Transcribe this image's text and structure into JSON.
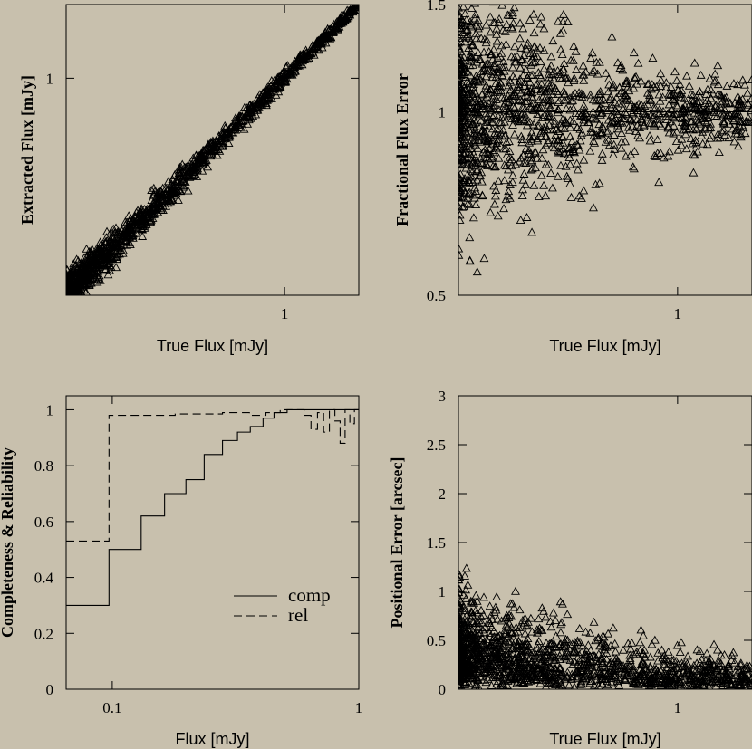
{
  "background": "#c8c0ad",
  "ink": "#000000",
  "chart_data": [
    {
      "type": "scatter",
      "id": "panel-a",
      "xlabel": "True Flux [mJy]",
      "ylabel": "Extracted Flux [mJy]",
      "xscale": "log",
      "yscale": "log",
      "xlim": [
        0.06,
        2.6
      ],
      "ylim": [
        0.06,
        2.6
      ],
      "xticks": [
        {
          "v": 1,
          "label": "1"
        }
      ],
      "yticks": [
        {
          "v": 1,
          "label": "1"
        }
      ],
      "reference_line": {
        "x": [
          0.06,
          2.6
        ],
        "y": [
          0.06,
          2.6
        ]
      },
      "marker": "triangle-open",
      "points_shape": "points scatter tightly about y = x, widest scatter at the faint end"
    },
    {
      "type": "scatter",
      "id": "panel-b",
      "xlabel": "True Flux [mJy]",
      "ylabel": "Fractional Flux Error",
      "xscale": "log",
      "yscale": "log",
      "xlim": [
        0.06,
        2.6
      ],
      "ylim": [
        0.5,
        1.5
      ],
      "xticks": [
        {
          "v": 1,
          "label": "1"
        }
      ],
      "yticks": [
        {
          "v": 0.5,
          "label": "0.5"
        },
        {
          "v": 1,
          "label": "1"
        },
        {
          "v": 1.5,
          "label": "1.5"
        }
      ],
      "reference_line": {
        "x": [
          0.06,
          2.6
        ],
        "y": [
          1,
          1
        ]
      },
      "marker": "triangle-open",
      "points_shape": "ratio centred on 1, spread narrowing toward high flux"
    },
    {
      "type": "line",
      "id": "panel-c",
      "xlabel": "Flux [mJy]",
      "ylabel": "Completeness & Reliability",
      "xscale": "log",
      "xlim": [
        0.065,
        1.0
      ],
      "ylim": [
        0,
        1.05
      ],
      "xticks": [
        {
          "v": 0.1,
          "label": "0.1"
        },
        {
          "v": 1,
          "label": "1"
        }
      ],
      "yticks": [
        {
          "v": 0,
          "label": "0"
        },
        {
          "v": 0.2,
          "label": "0.2"
        },
        {
          "v": 0.4,
          "label": "0.4"
        },
        {
          "v": 0.6,
          "label": "0.6"
        },
        {
          "v": 0.8,
          "label": "0.8"
        },
        {
          "v": 1,
          "label": "1"
        }
      ],
      "legend": "bottom-right",
      "series": [
        {
          "name": "comp",
          "dash": "solid",
          "edges": [
            0.065,
            0.097,
            0.131,
            0.163,
            0.199,
            0.236,
            0.28,
            0.322,
            0.363,
            0.409,
            0.453,
            0.512,
            0.58,
            0.66,
            0.76,
            0.86,
            1.0
          ],
          "values": [
            0.3,
            0.5,
            0.62,
            0.7,
            0.75,
            0.84,
            0.89,
            0.92,
            0.94,
            0.97,
            0.99,
            1.0,
            1.0,
            1.0,
            1.0,
            1.0
          ]
        },
        {
          "name": "rel",
          "dash": "dashed",
          "edges": [
            0.065,
            0.097,
            0.18,
            0.28,
            0.36,
            0.42,
            0.48,
            0.55,
            0.6,
            0.64,
            0.68,
            0.72,
            0.76,
            0.8,
            0.84,
            0.88,
            0.92,
            0.96,
            1.0
          ],
          "values": [
            0.53,
            0.98,
            0.985,
            0.99,
            0.98,
            0.99,
            1.0,
            1.0,
            0.98,
            0.93,
            0.99,
            0.92,
            1.0,
            0.96,
            0.88,
            1.0,
            0.95,
            1.0
          ]
        }
      ]
    },
    {
      "type": "scatter",
      "id": "panel-d",
      "xlabel": "True Flux [mJy]",
      "ylabel": "Positional Error [arcsec]",
      "xscale": "log",
      "xlim": [
        0.06,
        2.6
      ],
      "ylim": [
        0,
        3
      ],
      "xticks": [
        {
          "v": 1,
          "label": "1"
        }
      ],
      "yticks": [
        {
          "v": 0,
          "label": "0"
        },
        {
          "v": 0.5,
          "label": "0.5"
        },
        {
          "v": 1,
          "label": "1"
        },
        {
          "v": 1.5,
          "label": "1.5"
        },
        {
          "v": 2,
          "label": "2"
        },
        {
          "v": 2.5,
          "label": "2.5"
        },
        {
          "v": 3,
          "label": "3"
        }
      ],
      "marker": "triangle-open",
      "points_shape": "errors up to ~2 arcsec at faint end, falling to ~0.1 at bright end"
    }
  ]
}
